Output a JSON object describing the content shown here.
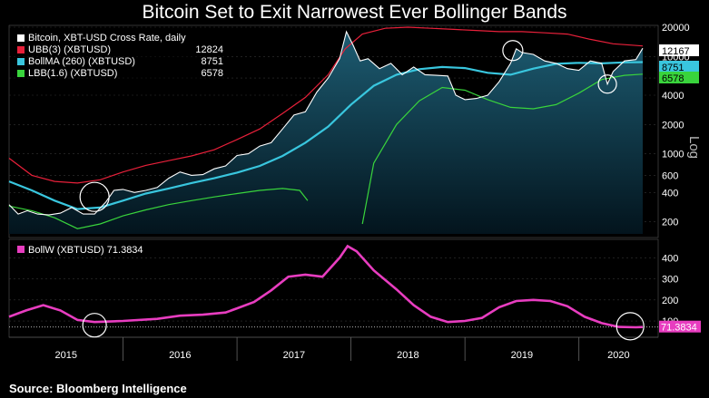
{
  "title": "Bitcoin Set to Exit Narrowest Ever Bollinger Bands",
  "source": "Source: Bloomberg Intelligence",
  "chart_data": [
    {
      "type": "line",
      "y_scale": "log",
      "ylabel": "Log",
      "y_ticks": [
        200,
        400,
        600,
        1000,
        2000,
        4000,
        6000,
        10000,
        20000
      ],
      "ylim": [
        150,
        20000
      ],
      "x_range": [
        "2015-01",
        "2020-06"
      ],
      "years": [
        "2015",
        "2016",
        "2017",
        "2018",
        "2019",
        "2020"
      ],
      "legend": [
        {
          "label": "Bitcoin, XBT-USD Cross Rate, daily",
          "value": "",
          "color": "#ffffff"
        },
        {
          "label": "UBB(3) (XBTUSD)",
          "value": "12824",
          "color": "#e8203a"
        },
        {
          "label": "BollMA (260) (XBTUSD)",
          "value": "8751",
          "color": "#39c6de"
        },
        {
          "label": "LBB(1.6) (XBTUSD)",
          "value": "6578",
          "color": "#39d43c"
        }
      ],
      "last_values": [
        {
          "value": "12167",
          "color": "#ffffff",
          "text_color": "#000000"
        },
        {
          "value": "8751",
          "color": "#39c6de",
          "text_color": "#000000"
        },
        {
          "value": "6578",
          "color": "#39d43c",
          "text_color": "#000000"
        }
      ],
      "series": [
        {
          "name": "Bitcoin, XBT-USD Cross Rate, daily",
          "color": "#ffffff",
          "x": [
            2015.0,
            2015.08,
            2015.16,
            2015.25,
            2015.35,
            2015.45,
            2015.55,
            2015.65,
            2015.75,
            2015.85,
            2015.92,
            2016.0,
            2016.1,
            2016.2,
            2016.3,
            2016.4,
            2016.5,
            2016.6,
            2016.7,
            2016.8,
            2016.9,
            2017.0,
            2017.1,
            2017.2,
            2017.3,
            2017.4,
            2017.5,
            2017.6,
            2017.7,
            2017.8,
            2017.9,
            2017.96,
            2018.02,
            2018.08,
            2018.15,
            2018.25,
            2018.35,
            2018.45,
            2018.55,
            2018.65,
            2018.75,
            2018.85,
            2018.92,
            2019.0,
            2019.1,
            2019.2,
            2019.3,
            2019.4,
            2019.45,
            2019.5,
            2019.6,
            2019.7,
            2019.8,
            2019.9,
            2020.0,
            2020.1,
            2020.2,
            2020.25,
            2020.3,
            2020.4,
            2020.5,
            2020.56
          ],
          "y": [
            300,
            240,
            260,
            240,
            235,
            245,
            280,
            240,
            240,
            320,
            420,
            430,
            400,
            420,
            450,
            560,
            650,
            600,
            610,
            700,
            750,
            960,
            1000,
            1200,
            1300,
            1800,
            2500,
            2700,
            4300,
            6000,
            9500,
            18000,
            13000,
            9000,
            9500,
            7500,
            8500,
            6500,
            7800,
            6500,
            6400,
            6300,
            4000,
            3600,
            3700,
            4000,
            5500,
            8500,
            12000,
            11000,
            10500,
            9000,
            8500,
            7500,
            7200,
            9000,
            8500,
            5200,
            7000,
            9000,
            9300,
            12167
          ]
        },
        {
          "name": "UBB(3) (XBTUSD)",
          "color": "#e8203a",
          "x": [
            2015.0,
            2015.2,
            2015.4,
            2015.6,
            2015.8,
            2016.0,
            2016.2,
            2016.4,
            2016.6,
            2016.8,
            2017.0,
            2017.2,
            2017.4,
            2017.6,
            2017.8,
            2017.95,
            2018.1,
            2018.3,
            2018.5,
            2018.7,
            2018.9,
            2019.1,
            2019.3,
            2019.5,
            2019.7,
            2019.9,
            2020.1,
            2020.3,
            2020.56
          ],
          "y": [
            900,
            600,
            520,
            500,
            540,
            650,
            760,
            850,
            950,
            1100,
            1400,
            1800,
            2600,
            3800,
            6500,
            12000,
            17000,
            19500,
            20000,
            19500,
            19000,
            18500,
            18000,
            18000,
            17500,
            17000,
            15000,
            13500,
            12824
          ]
        },
        {
          "name": "BollMA (260) (XBTUSD)",
          "color": "#39c6de",
          "x": [
            2015.0,
            2015.2,
            2015.4,
            2015.6,
            2015.8,
            2016.0,
            2016.2,
            2016.4,
            2016.6,
            2016.8,
            2017.0,
            2017.2,
            2017.4,
            2017.6,
            2017.8,
            2018.0,
            2018.2,
            2018.4,
            2018.6,
            2018.8,
            2019.0,
            2019.2,
            2019.4,
            2019.6,
            2019.8,
            2020.0,
            2020.2,
            2020.4,
            2020.56
          ],
          "y": [
            520,
            420,
            330,
            270,
            280,
            330,
            390,
            440,
            500,
            560,
            640,
            750,
            950,
            1300,
            1900,
            3200,
            5000,
            6500,
            7400,
            7800,
            7600,
            6800,
            6500,
            7500,
            8400,
            8600,
            8500,
            8700,
            8751
          ]
        },
        {
          "name": "LBB(1.6) (XBTUSD)",
          "color": "#39d43c",
          "x": [
            2015.0,
            2015.2,
            2015.4,
            2015.6,
            2015.8,
            2016.0,
            2016.2,
            2016.4,
            2016.6,
            2016.8,
            2017.0,
            2017.2,
            2017.4,
            2017.55,
            2017.62,
            2017.66,
            2018.0,
            2018.1,
            2018.2,
            2018.4,
            2018.6,
            2018.8,
            2019.0,
            2019.2,
            2019.4,
            2019.6,
            2019.8,
            2020.0,
            2020.2,
            2020.4,
            2020.56
          ],
          "y": [
            290,
            260,
            220,
            170,
            190,
            230,
            265,
            300,
            330,
            360,
            390,
            420,
            440,
            420,
            330,
            null,
            null,
            190,
            800,
            2000,
            3500,
            4800,
            4500,
            3600,
            3000,
            2900,
            3200,
            4200,
            5800,
            6400,
            6578
          ]
        }
      ]
    },
    {
      "type": "line",
      "series_label": "BollW (XBTUSD) 71.3834",
      "last_value": "71.3834",
      "y_ticks": [
        100,
        200,
        300,
        400
      ],
      "ylim": [
        40,
        470
      ],
      "years": [
        "2015",
        "2016",
        "2017",
        "2018",
        "2019",
        "2020"
      ],
      "series": [
        {
          "name": "BollW (XBTUSD)",
          "color": "#e83dc0",
          "x": [
            2015.0,
            2015.15,
            2015.3,
            2015.45,
            2015.6,
            2015.75,
            2016.0,
            2016.3,
            2016.5,
            2016.7,
            2016.9,
            2017.0,
            2017.15,
            2017.3,
            2017.45,
            2017.6,
            2017.75,
            2017.9,
            2017.97,
            2018.05,
            2018.2,
            2018.4,
            2018.55,
            2018.7,
            2018.85,
            2019.0,
            2019.15,
            2019.3,
            2019.45,
            2019.6,
            2019.75,
            2019.9,
            2020.05,
            2020.2,
            2020.35,
            2020.5,
            2020.56
          ],
          "y": [
            120,
            150,
            175,
            150,
            105,
            95,
            100,
            110,
            125,
            130,
            140,
            160,
            190,
            245,
            310,
            320,
            310,
            400,
            455,
            430,
            340,
            250,
            175,
            120,
            95,
            100,
            115,
            165,
            195,
            200,
            195,
            170,
            120,
            90,
            72,
            70,
            71.3834
          ]
        }
      ]
    }
  ]
}
